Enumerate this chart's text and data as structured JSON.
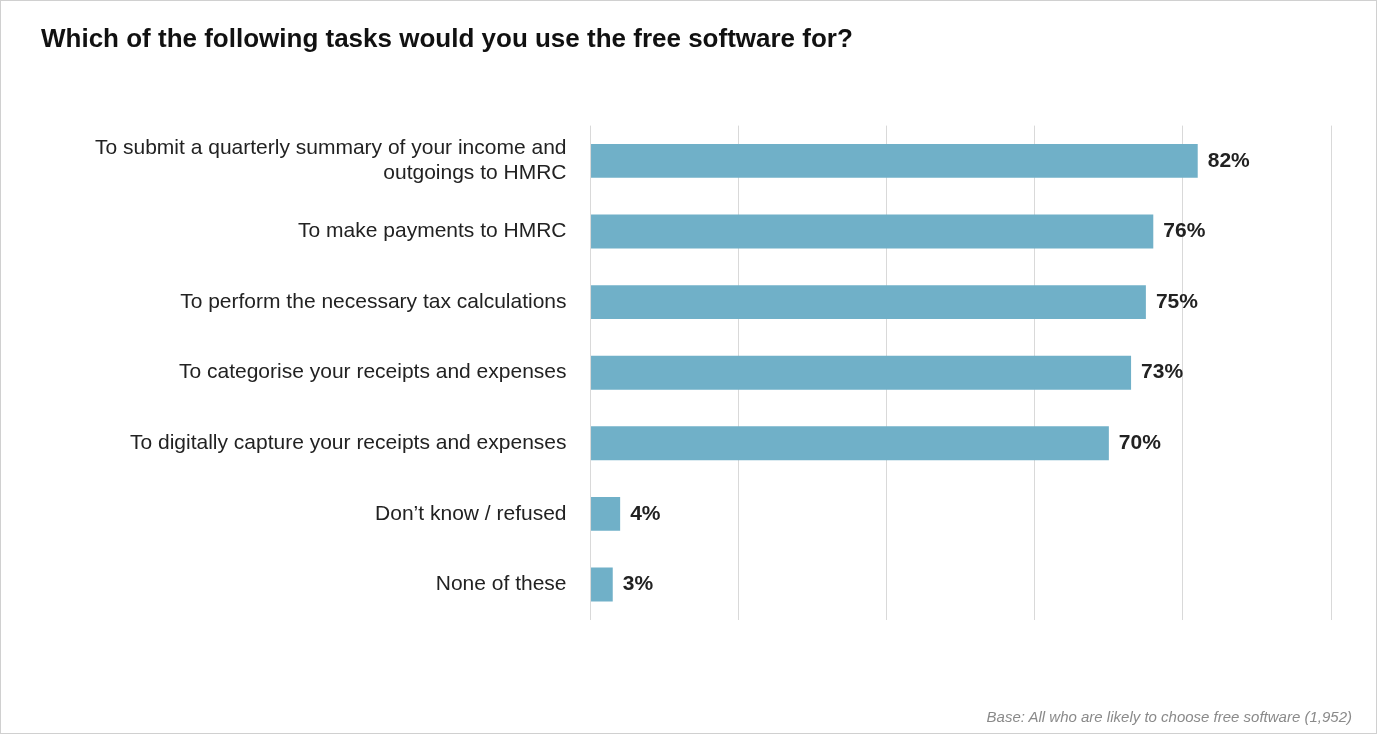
{
  "chart_data": {
    "type": "bar",
    "orientation": "horizontal",
    "title": "Which of the following tasks would you use the free software for?",
    "categories": [
      "To submit a quarterly summary of your income and outgoings to HMRC",
      "To make payments to HMRC",
      "To perform the necessary tax calculations",
      "To categorise your receipts and expenses",
      "To digitally capture your receipts and expenses",
      "Don’t know / refused",
      "None of these"
    ],
    "values": [
      82,
      76,
      75,
      73,
      70,
      4,
      3
    ],
    "value_labels": [
      "82%",
      "76%",
      "75%",
      "73%",
      "70%",
      "4%",
      "3%"
    ],
    "color": "#70b0c8",
    "xlim": [
      0,
      100
    ],
    "xticks": [
      {
        "value": 0,
        "label": null
      },
      {
        "value": 20,
        "label": null
      },
      {
        "value": 40,
        "label": null
      },
      {
        "value": 60,
        "label": null
      },
      {
        "value": 80,
        "label": null
      },
      {
        "value": 100,
        "label": null
      }
    ],
    "tick_labels": "y",
    "grid": "x",
    "legend": false,
    "annotations": [
      "Base: All who are likely to choose free software (1,952)"
    ]
  }
}
